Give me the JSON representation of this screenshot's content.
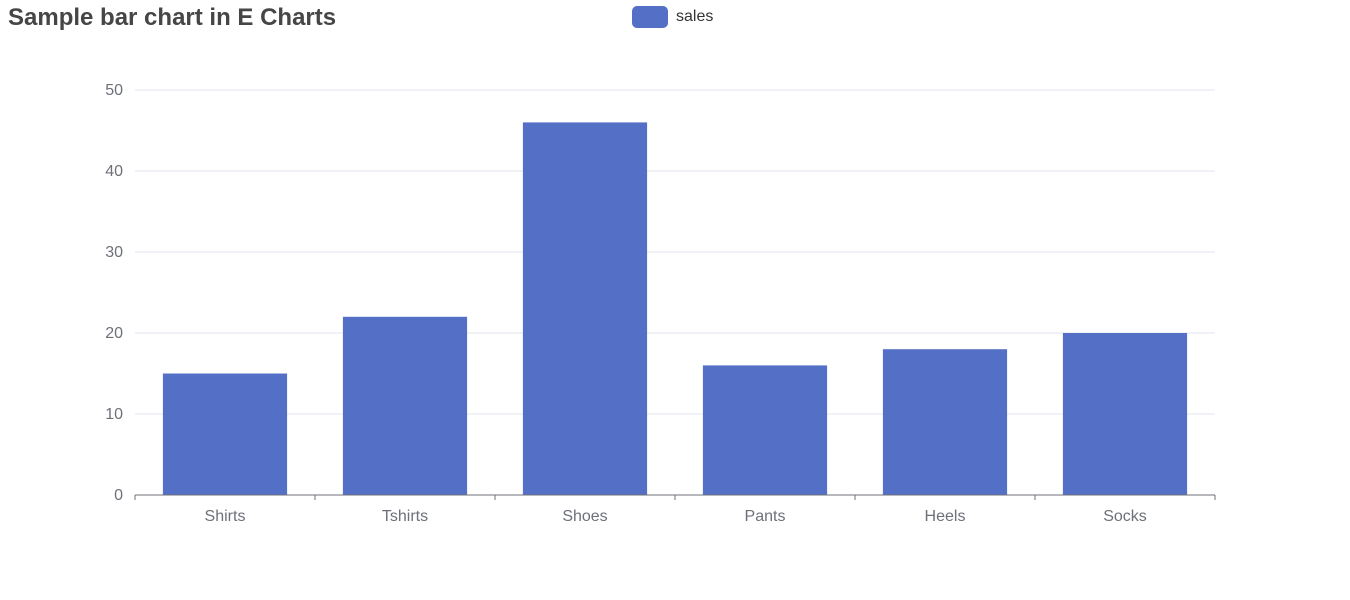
{
  "colors": {
    "bar": "#5470c6",
    "grid": "#e0e6f1",
    "axis": "#6e7079"
  },
  "legend": {
    "label": "sales",
    "icon": "rounded-rect-swatch"
  },
  "chart_data": {
    "type": "bar",
    "title": "Sample bar chart in E Charts",
    "categories": [
      "Shirts",
      "Tshirts",
      "Shoes",
      "Pants",
      "Heels",
      "Socks"
    ],
    "series": [
      {
        "name": "sales",
        "values": [
          15,
          22,
          46,
          16,
          18,
          20
        ]
      }
    ],
    "ylim": [
      0,
      50
    ],
    "yticks": [
      0,
      10,
      20,
      30,
      40,
      50
    ],
    "xlabel": "",
    "ylabel": "",
    "grid": true,
    "legend_position": "top-center"
  }
}
